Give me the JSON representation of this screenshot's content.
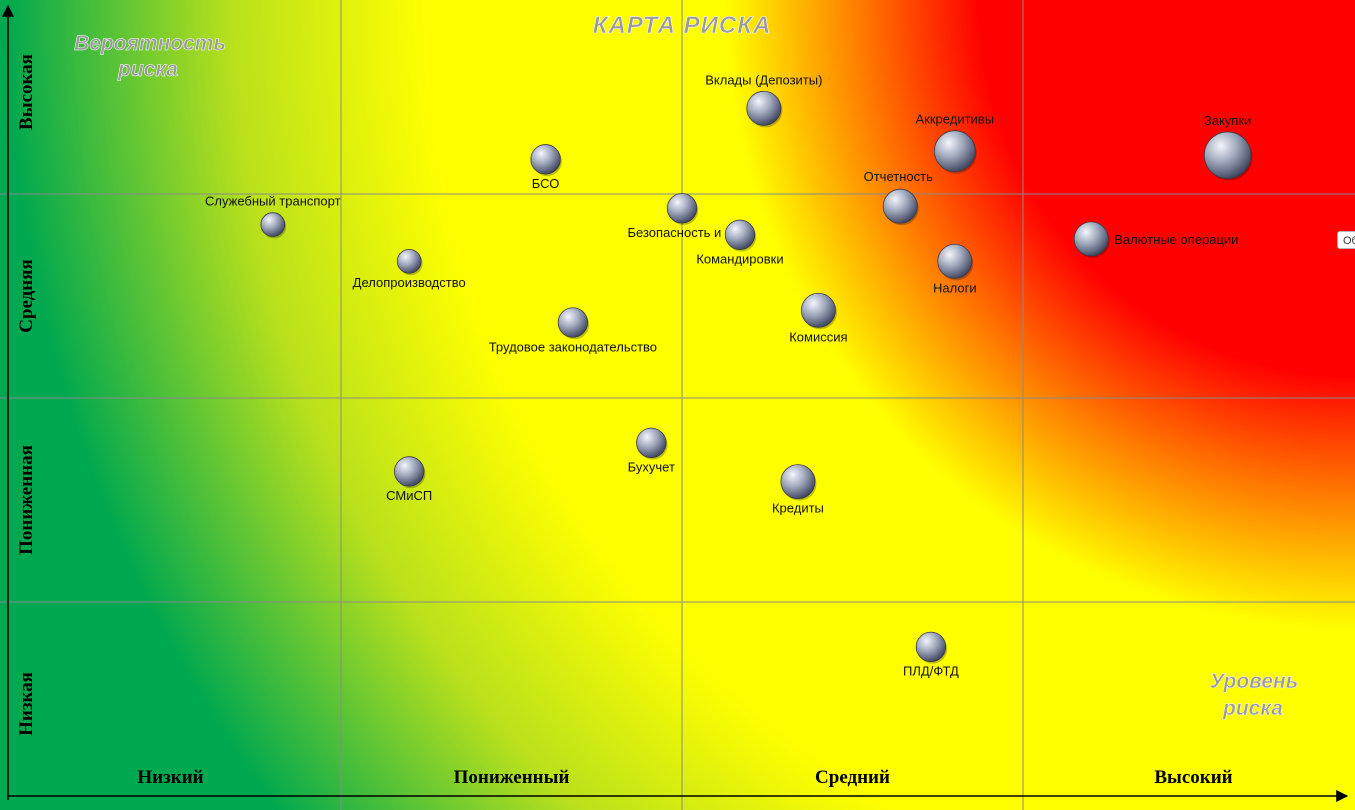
{
  "chart_data": {
    "type": "scatter",
    "title": "КАРТА  РИСКА",
    "ylabel": "Вероятность риска",
    "xlabel": "Уровень риска",
    "x_categories": [
      "Низкий",
      "Пониженный",
      "Средний",
      "Высокий"
    ],
    "y_categories": [
      "Низкая",
      "Пониженная",
      "Средняя",
      "Высокая"
    ],
    "xlim": [
      0,
      4
    ],
    "ylim": [
      0,
      4
    ],
    "grid": true,
    "background": "green-yellow-red heat gradient",
    "colors": {
      "low": "#00a84f",
      "medium": "#ffff00",
      "high": "#ff0000",
      "bubble": "#9aa3b8"
    },
    "points": [
      {
        "label": "Вклады (Депозиты)",
        "x": 2.24,
        "y": 3.42,
        "size": 2.2
      },
      {
        "label": "Аккредитивы",
        "x": 2.8,
        "y": 3.21,
        "size": 2.8
      },
      {
        "label": "Закупки",
        "x": 3.6,
        "y": 3.19,
        "size": 3.3
      },
      {
        "label": "БСО",
        "x": 1.6,
        "y": 3.17,
        "size": 1.8
      },
      {
        "label": "Отчетность",
        "x": 2.64,
        "y": 2.94,
        "size": 2.2
      },
      {
        "label": "Безопасность и IT",
        "x": 2.0,
        "y": 2.93,
        "size": 1.8
      },
      {
        "label": "Служебный транспорт",
        "x": 0.8,
        "y": 2.85,
        "size": 1.3
      },
      {
        "label": "Командировки",
        "x": 2.17,
        "y": 2.8,
        "size": 1.8
      },
      {
        "label": "Валютные операции",
        "x": 3.2,
        "y": 2.78,
        "size": 2.2
      },
      {
        "label": "Налоги",
        "x": 2.8,
        "y": 2.67,
        "size": 2.2
      },
      {
        "label": "Делопроизводство",
        "x": 1.2,
        "y": 2.67,
        "size": 1.3
      },
      {
        "label": "Комиссия",
        "x": 2.4,
        "y": 2.43,
        "size": 2.2
      },
      {
        "label": "Трудовое законодательство",
        "x": 1.68,
        "y": 2.37,
        "size": 1.8
      },
      {
        "label": "Бухучет",
        "x": 1.91,
        "y": 1.78,
        "size": 1.8
      },
      {
        "label": "СМиСП",
        "x": 1.2,
        "y": 1.64,
        "size": 1.8
      },
      {
        "label": "Кредиты",
        "x": 2.34,
        "y": 1.59,
        "size": 2.2
      },
      {
        "label": "ПЛД/ФТД",
        "x": 2.73,
        "y": 0.78,
        "size": 1.8
      }
    ]
  },
  "ui": {
    "side_button_text": "Об"
  }
}
